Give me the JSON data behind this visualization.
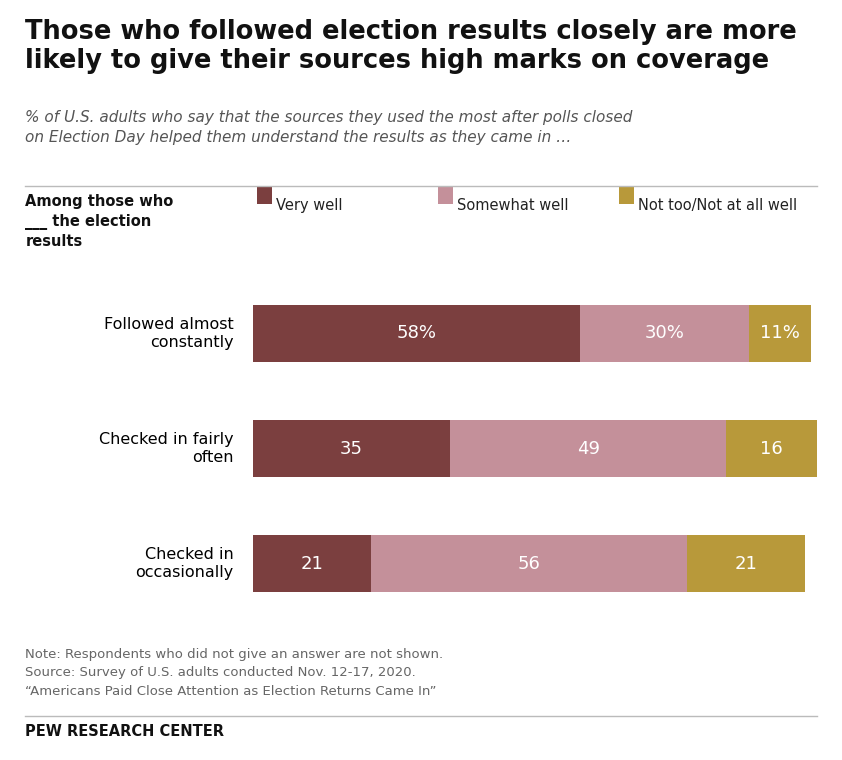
{
  "title": "Those who followed election results closely are more\nlikely to give their sources high marks on coverage",
  "subtitle": "% of U.S. adults who say that the sources they used the most after polls closed\non Election Day helped them understand the results as they came in …",
  "among_label": "Among those who\n___ the election\nresults",
  "categories": [
    "Followed almost\nconstantly",
    "Checked in fairly\noften",
    "Checked in\noccasionally"
  ],
  "series": [
    {
      "name": "Very well",
      "values": [
        58,
        35,
        21
      ],
      "color": "#7b3f3f"
    },
    {
      "name": "Somewhat well",
      "values": [
        30,
        49,
        56
      ],
      "color": "#c4909a"
    },
    {
      "name": "Not too/Not at all well",
      "values": [
        11,
        16,
        21
      ],
      "color": "#b8993a"
    }
  ],
  "row_labels": [
    [
      "58%",
      "30%",
      "11%"
    ],
    [
      "35",
      "49",
      "16"
    ],
    [
      "21",
      "56",
      "21"
    ]
  ],
  "note_lines": [
    "Note: Respondents who did not give an answer are not shown.",
    "Source: Survey of U.S. adults conducted Nov. 12-17, 2020.",
    "“Americans Paid Close Attention as Election Returns Came In”"
  ],
  "footer": "PEW RESEARCH CENTER",
  "background_color": "#ffffff"
}
